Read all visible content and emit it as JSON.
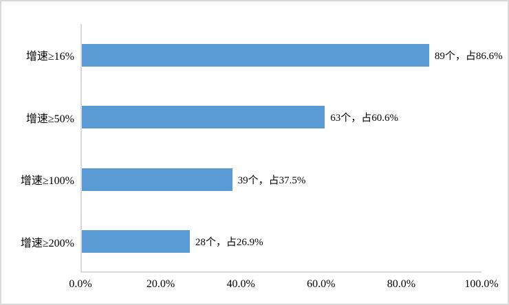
{
  "chart_data": {
    "type": "bar",
    "orientation": "horizontal",
    "title": "",
    "categories": [
      "增速≥16%",
      "增速≥50%",
      "增速≥100%",
      "增速≥200%"
    ],
    "values": [
      86.6,
      60.6,
      37.5,
      26.9
    ],
    "counts": [
      89,
      63,
      39,
      28
    ],
    "bar_labels": [
      "89个，占86.6%",
      "63个，占60.6%",
      "39个，占37.5%",
      "28个，占26.9%"
    ],
    "x_ticks": [
      {
        "value": 0,
        "label": "0.0%"
      },
      {
        "value": 20,
        "label": "20.0%"
      },
      {
        "value": 40,
        "label": "40.0%"
      },
      {
        "value": 60,
        "label": "60.0%"
      },
      {
        "value": 80,
        "label": "80.0%"
      },
      {
        "value": 100,
        "label": "100.0%"
      }
    ],
    "xlim": [
      0,
      100
    ],
    "grid": false,
    "legend": false,
    "colors": {
      "bar": "#5b9bd5",
      "axis": "#d9d9d9",
      "text": "#000000",
      "frame_border": "#d9d9d9",
      "background": "#ffffff"
    }
  }
}
